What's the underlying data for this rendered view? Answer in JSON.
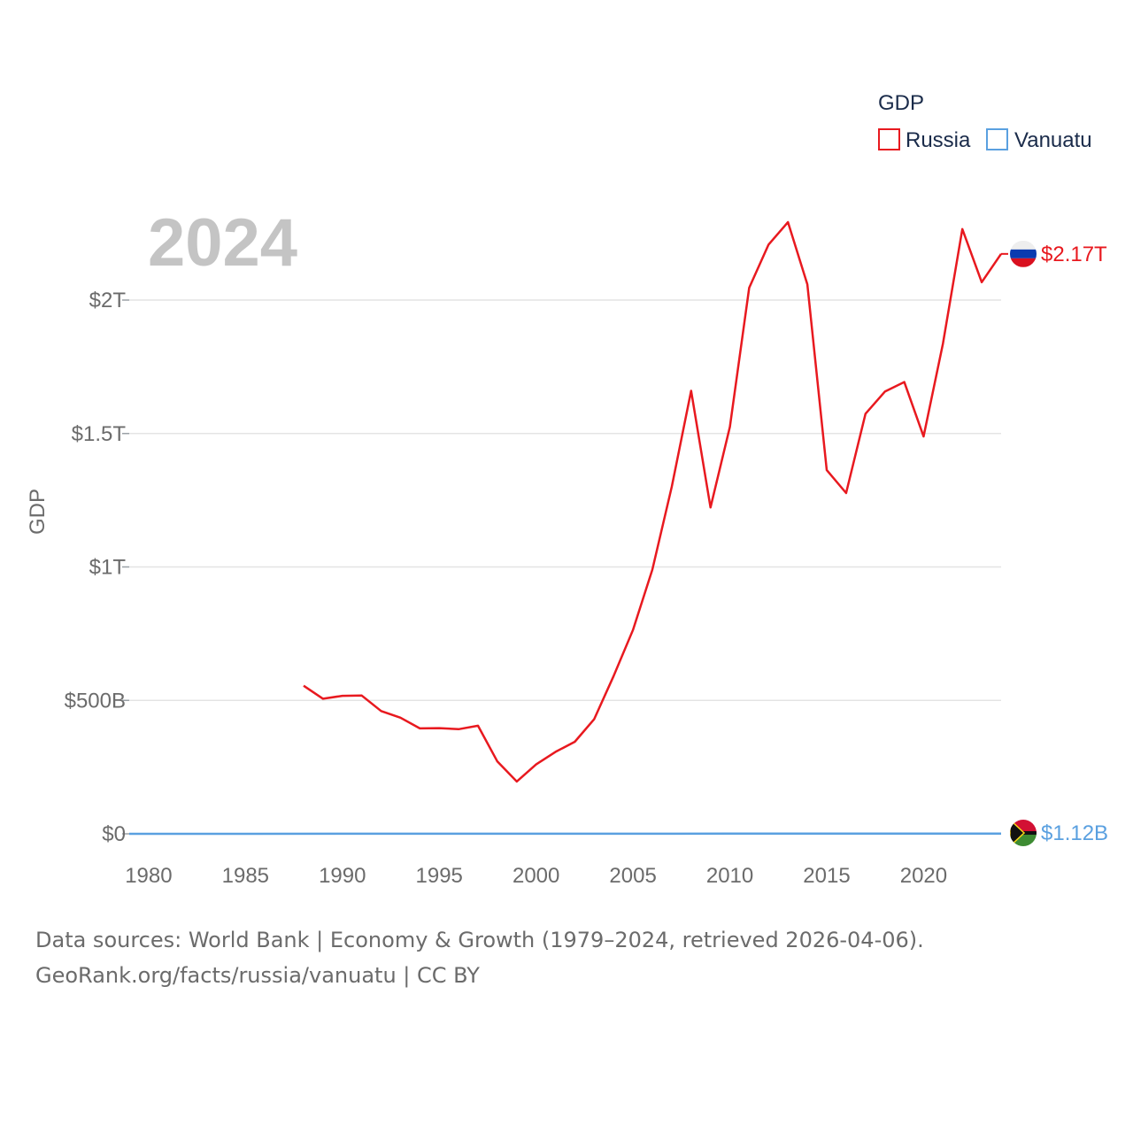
{
  "chart_data": {
    "type": "line",
    "title": "",
    "year_label": "2024",
    "legend_title": "GDP",
    "xlabel": "",
    "ylabel": "GDP",
    "xlim": [
      1979,
      2024
    ],
    "ylim": [
      0,
      2400000000000
    ],
    "x_ticks": [
      1980,
      1985,
      1990,
      1995,
      2000,
      2005,
      2010,
      2015,
      2020
    ],
    "x_tick_labels": [
      "1980",
      "1985",
      "1990",
      "1995",
      "2000",
      "2005",
      "2010",
      "2015",
      "2020"
    ],
    "y_ticks": [
      0,
      500000000000,
      1000000000000,
      1500000000000,
      2000000000000
    ],
    "y_tick_labels": [
      "$0",
      "$500B",
      "$1T",
      "$1.5T",
      "$2T"
    ],
    "grid": true,
    "legend_position": "top-right",
    "series": [
      {
        "name": "Russia",
        "color": "#e8191f",
        "end_label": "$2.17T",
        "flag": "russia-flag",
        "x": [
          1988,
          1989,
          1990,
          1991,
          1992,
          1993,
          1994,
          1995,
          1996,
          1997,
          1998,
          1999,
          2000,
          2001,
          2002,
          2003,
          2004,
          2005,
          2006,
          2007,
          2008,
          2009,
          2010,
          2011,
          2012,
          2013,
          2014,
          2015,
          2016,
          2017,
          2018,
          2019,
          2020,
          2021,
          2022,
          2023,
          2024
        ],
        "values": [
          555000000000,
          506000000000,
          517000000000,
          518000000000,
          460000000000,
          435000000000,
          395000000000,
          396000000000,
          392000000000,
          405000000000,
          271000000000,
          196000000000,
          260000000000,
          307000000000,
          345000000000,
          430000000000,
          591000000000,
          764000000000,
          990000000000,
          1300000000000,
          1660000000000,
          1223000000000,
          1525000000000,
          2046000000000,
          2208000000000,
          2292000000000,
          2059000000000,
          1363000000000,
          1277000000000,
          1574000000000,
          1657000000000,
          1693000000000,
          1489000000000,
          1837000000000,
          2266000000000,
          2067000000000,
          2173000000000
        ]
      },
      {
        "name": "Vanuatu",
        "color": "#5aa0e0",
        "end_label": "$1.12B",
        "flag": "vanuatu-flag",
        "x": [
          1979,
          1980,
          1985,
          1990,
          1995,
          2000,
          2005,
          2010,
          2015,
          2020,
          2024
        ],
        "values": [
          120000000,
          130000000,
          140000000,
          200000000,
          240000000,
          270000000,
          390000000,
          700000000,
          740000000,
          860000000,
          1120000000
        ]
      }
    ]
  },
  "footer": {
    "line1": "Data sources: World Bank | Economy & Growth (1979–2024, retrieved 2026-04-06).",
    "line2": "GeoRank.org/facts/russia/vanuatu | CC BY"
  }
}
